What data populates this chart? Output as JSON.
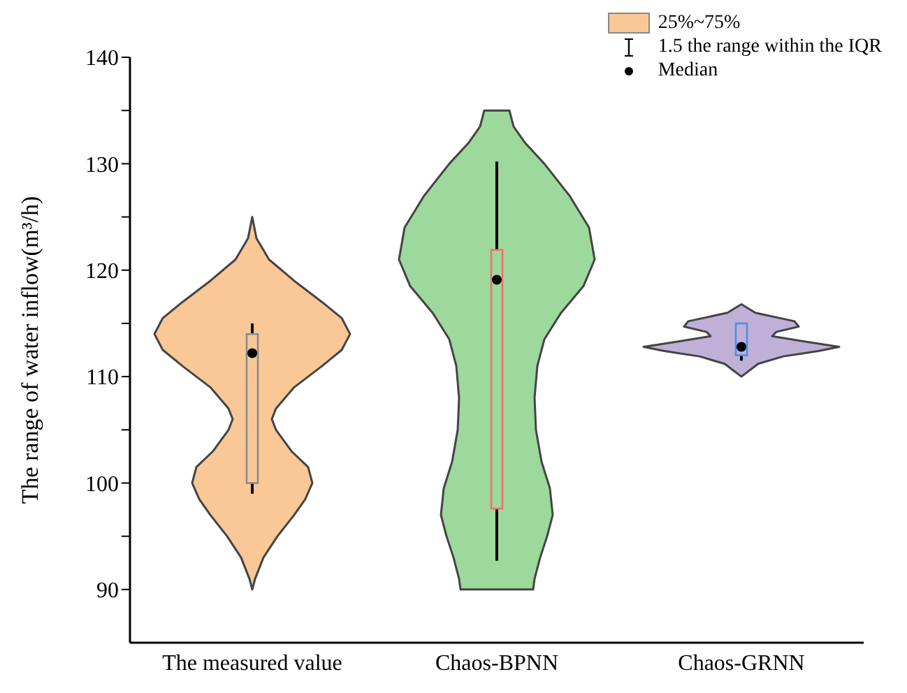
{
  "chart_data": {
    "type": "box",
    "ylabel": "The range of water inflow(m³/h)",
    "categories": [
      "The measured value",
      "Chaos-BPNN",
      "Chaos-GRNN"
    ],
    "boxes": [
      {
        "low": 99,
        "q1": 100,
        "median": 112.2,
        "q3": 114,
        "high": 115
      },
      {
        "low": 92.7,
        "q1": 97.6,
        "median": 119.1,
        "q3": 121.9,
        "high": 130.2
      },
      {
        "low": 111.5,
        "q1": 112,
        "median": 112.8,
        "q3": 115,
        "high": 115
      }
    ],
    "colors": [
      "#f9c896",
      "#9dd89c",
      "#c0b0d8"
    ],
    "ylim": [
      85,
      140
    ],
    "yticks": [
      90,
      {
        "value": 95,
        "label": null
      },
      100,
      {
        "value": 105,
        "label": null
      },
      110,
      {
        "value": 115,
        "label": null
      },
      120,
      {
        "value": 125,
        "label": null
      },
      130,
      {
        "value": 135,
        "label": null
      },
      140
    ],
    "annotations": [
      "25%~75%",
      "1.5 the range within the IQR",
      "Median"
    ]
  }
}
